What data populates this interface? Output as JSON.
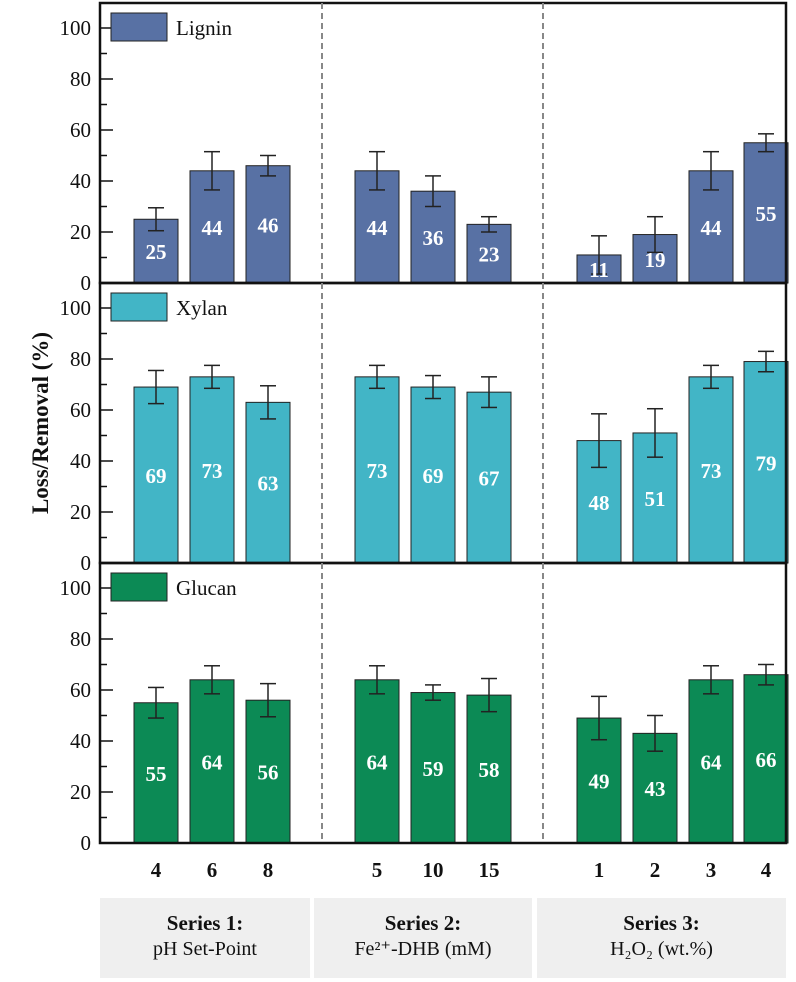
{
  "chart_data": {
    "type": "bar",
    "ylabel": "Loss/Removal (%)",
    "ylim": [
      0,
      110
    ],
    "yticks": [
      0,
      20,
      40,
      60,
      80,
      100
    ],
    "categories": [
      "4",
      "6",
      "8",
      "5",
      "10",
      "15",
      "1",
      "2",
      "3",
      "4"
    ],
    "groups": [
      {
        "title": "Series 1:",
        "subtitle": "pH Set-Point",
        "count": 3
      },
      {
        "title": "Series 2:",
        "subtitle": "Fe²⁺-DHB (mM)",
        "count": 3
      },
      {
        "title": "Series 3:",
        "subtitle": "H₂O₂ (wt.%)",
        "count": 4
      }
    ],
    "series": [
      {
        "name": "Lignin",
        "color": "#5871a4",
        "values": [
          25,
          44,
          46,
          44,
          36,
          23,
          11,
          19,
          44,
          55
        ],
        "errors": [
          4.5,
          7.5,
          4,
          7.5,
          6,
          3,
          7.5,
          7,
          7.5,
          3.5
        ]
      },
      {
        "name": "Xylan",
        "color": "#42b5c6",
        "values": [
          69,
          73,
          63,
          73,
          69,
          67,
          48,
          51,
          73,
          79
        ],
        "errors": [
          6.5,
          4.5,
          6.5,
          4.5,
          4.5,
          6,
          10.5,
          9.5,
          4.5,
          4
        ]
      },
      {
        "name": "Glucan",
        "color": "#0c8a55",
        "values": [
          55,
          64,
          56,
          64,
          59,
          58,
          49,
          43,
          64,
          66
        ],
        "errors": [
          6,
          5.5,
          6.5,
          5.5,
          3,
          6.5,
          8.5,
          7,
          5.5,
          4
        ]
      }
    ]
  }
}
